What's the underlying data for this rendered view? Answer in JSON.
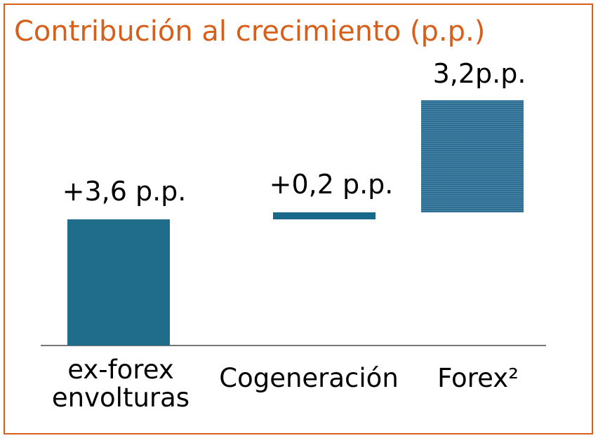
{
  "chart_data": {
    "type": "waterfall",
    "title": "Contribución al crecimiento (p.p.)",
    "categories": [
      "ex-forex envolturas",
      "Cogeneración",
      "Forex²"
    ],
    "values": [
      3.6,
      0.2,
      3.2
    ],
    "value_labels": [
      "+3,6 p.p.",
      "+0,2 p.p.",
      "3,2p.p."
    ],
    "colors": [
      "#1f6c8b",
      "#1a6889",
      "#6fa8c2"
    ],
    "ylim": [
      0,
      7.8
    ]
  }
}
